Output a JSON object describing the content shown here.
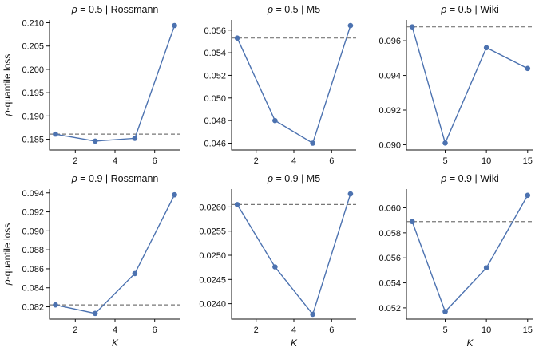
{
  "colors": {
    "series": "#4c72b0",
    "reference": "#777777",
    "axis": "#111111"
  },
  "chart_data": [
    {
      "type": "line",
      "title": "ρ = 0.5 | Rossmann",
      "xlabel": "",
      "ylabel": "ρ-quantile loss",
      "x": [
        1,
        3,
        5,
        7
      ],
      "y": [
        0.1861,
        0.1846,
        0.1852,
        0.2094
      ],
      "reference_y": 0.1861,
      "xlim": [
        0.7,
        7.3
      ],
      "ylim": [
        0.1827,
        0.2106
      ],
      "xticks": [
        2,
        4,
        6
      ],
      "yticks": [
        0.185,
        0.19,
        0.195,
        0.2,
        0.205,
        0.21
      ],
      "xtick_labels": [
        "2",
        "4",
        "6"
      ],
      "ytick_labels": [
        "0.185",
        "0.190",
        "0.195",
        "0.200",
        "0.205",
        "0.210"
      ]
    },
    {
      "type": "line",
      "title": "ρ = 0.5 | M5",
      "xlabel": "",
      "ylabel": "",
      "x": [
        1,
        3,
        5,
        7
      ],
      "y": [
        0.0553,
        0.048,
        0.046,
        0.0564
      ],
      "reference_y": 0.0553,
      "xlim": [
        0.7,
        7.3
      ],
      "ylim": [
        0.0454,
        0.0569
      ],
      "xticks": [
        2,
        4,
        6
      ],
      "yticks": [
        0.046,
        0.048,
        0.05,
        0.052,
        0.054,
        0.056
      ],
      "xtick_labels": [
        "2",
        "4",
        "6"
      ],
      "ytick_labels": [
        "0.046",
        "0.048",
        "0.050",
        "0.052",
        "0.054",
        "0.056"
      ]
    },
    {
      "type": "line",
      "title": "ρ = 0.5 | Wiki",
      "xlabel": "",
      "ylabel": "",
      "x": [
        1,
        5,
        10,
        15
      ],
      "y": [
        0.0968,
        0.0901,
        0.0956,
        0.0944
      ],
      "reference_y": 0.0968,
      "xlim": [
        0.3,
        15.7
      ],
      "ylim": [
        0.0897,
        0.0972
      ],
      "xticks": [
        5,
        10,
        15
      ],
      "yticks": [
        0.09,
        0.092,
        0.094,
        0.096
      ],
      "xtick_labels": [
        "5",
        "10",
        "15"
      ],
      "ytick_labels": [
        "0.090",
        "0.092",
        "0.094",
        "0.096"
      ]
    },
    {
      "type": "line",
      "title": "ρ = 0.9 | Rossmann",
      "xlabel": "K",
      "ylabel": "ρ-quantile loss",
      "x": [
        1,
        3,
        5,
        7
      ],
      "y": [
        0.0822,
        0.0813,
        0.0855,
        0.0938
      ],
      "reference_y": 0.0822,
      "xlim": [
        0.7,
        7.3
      ],
      "ylim": [
        0.0807,
        0.0944
      ],
      "xticks": [
        2,
        4,
        6
      ],
      "yticks": [
        0.082,
        0.084,
        0.086,
        0.088,
        0.09,
        0.092,
        0.094
      ],
      "xtick_labels": [
        "2",
        "4",
        "6"
      ],
      "ytick_labels": [
        "0.082",
        "0.084",
        "0.086",
        "0.088",
        "0.090",
        "0.092",
        "0.094"
      ]
    },
    {
      "type": "line",
      "title": "ρ = 0.9 | M5",
      "xlabel": "K",
      "ylabel": "",
      "x": [
        1,
        3,
        5,
        7
      ],
      "y": [
        0.02605,
        0.02476,
        0.02378,
        0.02627
      ],
      "reference_y": 0.02605,
      "xlim": [
        0.7,
        7.3
      ],
      "ylim": [
        0.02368,
        0.02637
      ],
      "xticks": [
        2,
        4,
        6
      ],
      "yticks": [
        0.024,
        0.0245,
        0.025,
        0.0255,
        0.026
      ],
      "xtick_labels": [
        "2",
        "4",
        "6"
      ],
      "ytick_labels": [
        "0.0240",
        "0.0245",
        "0.0250",
        "0.0255",
        "0.0260"
      ]
    },
    {
      "type": "line",
      "title": "ρ = 0.9 | Wiki",
      "xlabel": "K",
      "ylabel": "",
      "x": [
        1,
        5,
        10,
        15
      ],
      "y": [
        0.0589,
        0.0517,
        0.0552,
        0.061
      ],
      "reference_y": 0.0589,
      "xlim": [
        0.3,
        15.7
      ],
      "ylim": [
        0.0511,
        0.0615
      ],
      "xticks": [
        5,
        10,
        15
      ],
      "yticks": [
        0.052,
        0.054,
        0.056,
        0.058,
        0.06
      ],
      "xtick_labels": [
        "5",
        "10",
        "15"
      ],
      "ytick_labels": [
        "0.052",
        "0.054",
        "0.056",
        "0.058",
        "0.060"
      ]
    }
  ]
}
